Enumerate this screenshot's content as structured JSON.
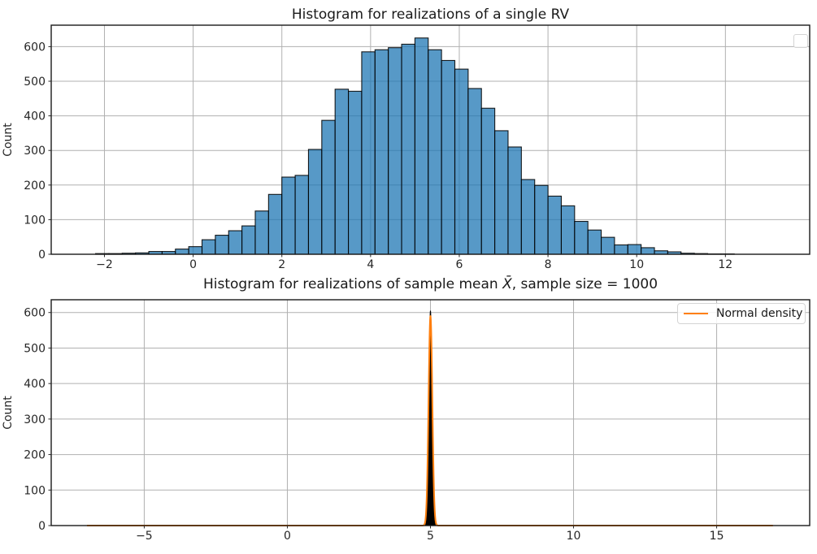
{
  "figure": {
    "background": "#ffffff",
    "text_color": "#262626",
    "grid_color": "#b0b0b0",
    "spine_color": "#1a1a1a"
  },
  "chart_data": [
    {
      "type": "bar",
      "subtype": "histogram",
      "title": "Histogram for realizations of a single RV",
      "xlabel": "",
      "ylabel": "Count",
      "grid": true,
      "legend": {
        "present": true,
        "position": "upper right",
        "entries": []
      },
      "xlim": [
        -3.2,
        13.9
      ],
      "ylim": [
        0,
        662
      ],
      "xticks": [
        -2,
        0,
        2,
        4,
        6,
        8,
        10,
        12
      ],
      "yticks": [
        0,
        100,
        200,
        300,
        400,
        500,
        600
      ],
      "bar_fill": "#1f77b4",
      "bar_alpha": 0.75,
      "bar_edge": "#000000",
      "bin_start": -2.2,
      "bin_width": 0.3,
      "counts": [
        2,
        2,
        3,
        4,
        8,
        8,
        15,
        22,
        42,
        55,
        68,
        82,
        125,
        173,
        223,
        228,
        303,
        387,
        477,
        471,
        585,
        591,
        597,
        607,
        625,
        591,
        560,
        535,
        479,
        422,
        357,
        310,
        216,
        199,
        168,
        140,
        95,
        70,
        49,
        27,
        28,
        19,
        10,
        7,
        3,
        2,
        1,
        1
      ]
    },
    {
      "type": "bar",
      "subtype": "histogram-with-density",
      "title_prefix": "Histogram for realizations of sample mean ",
      "title_math": "X̄",
      "title_suffix": ", sample size = 1000",
      "xlabel": "",
      "ylabel": "Count",
      "grid": true,
      "legend": {
        "present": true,
        "position": "upper right",
        "entries": [
          {
            "label": "Normal density",
            "color": "#ff7f0e"
          }
        ]
      },
      "xlim": [
        -8.25,
        18.25
      ],
      "ylim": [
        0,
        636
      ],
      "xticks": [
        -5,
        0,
        5,
        10,
        15
      ],
      "yticks": [
        0,
        100,
        200,
        300,
        400,
        500,
        600
      ],
      "histogram_spike": {
        "mean": 5.0,
        "sd": 0.052,
        "peak_count": 605,
        "x_extent": [
          4.7,
          5.3
        ],
        "fill": "#000000"
      },
      "density_curve": {
        "mean": 5.0,
        "sd": 0.065,
        "peak": 590,
        "x_range": [
          -7.0,
          17.0
        ],
        "color": "#ff7f0e",
        "line_width": 2
      }
    }
  ]
}
